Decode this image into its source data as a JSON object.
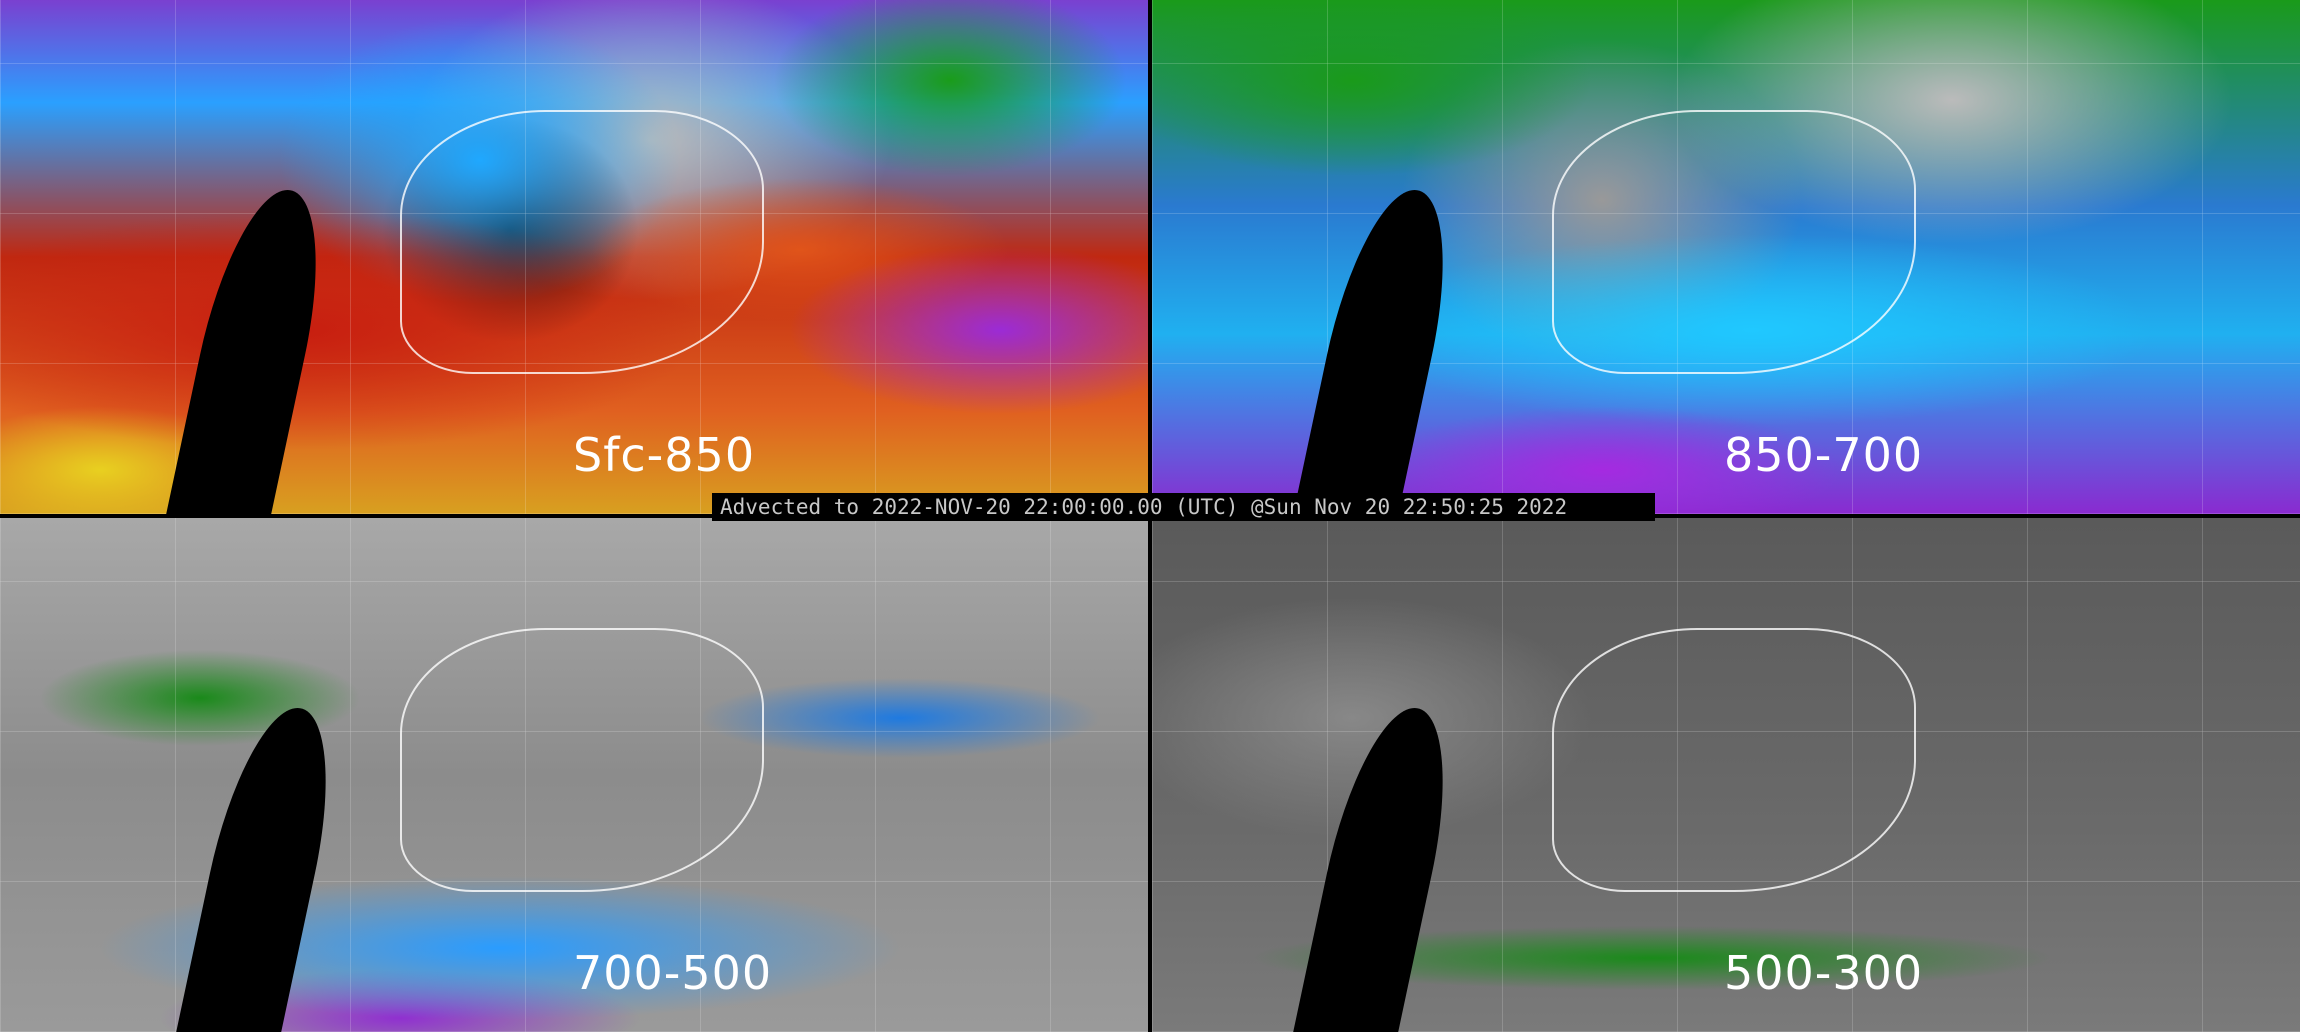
{
  "panels": [
    {
      "label": "Sfc-850"
    },
    {
      "label": "850-700"
    },
    {
      "label": "700-500"
    },
    {
      "label": "500-300"
    }
  ],
  "caption": "Advected to 2022-NOV-20 22:00:00.00 (UTC) @Sun Nov 20 22:50:25 2022"
}
